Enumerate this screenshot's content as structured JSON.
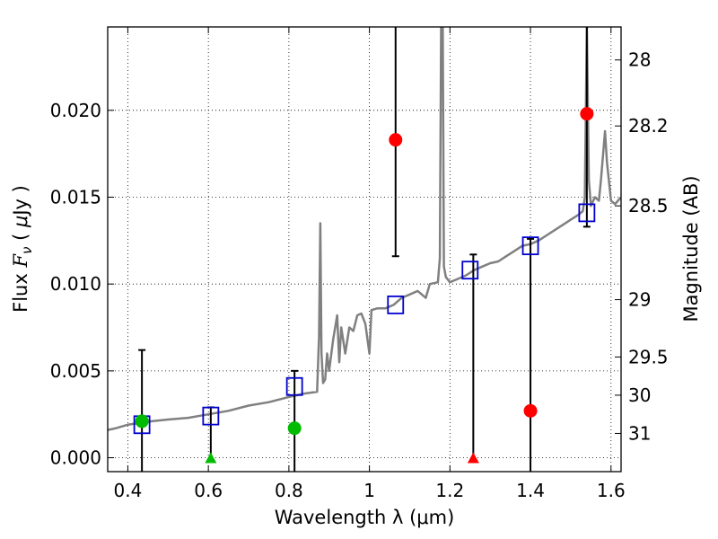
{
  "chart_data": {
    "type": "scatter",
    "xlabel": "Wavelength  λ (μm)",
    "ylabel_parts": [
      "Flux  ",
      "F",
      "ν",
      "  ( ",
      "μ",
      "Jy )"
    ],
    "y2label": "Magnitude (AB)",
    "xlim": [
      0.35,
      1.625
    ],
    "ylim": [
      -0.0008,
      0.0248
    ],
    "grid": true,
    "xticks": [
      0.4,
      0.6,
      0.8,
      1.0,
      1.2,
      1.4,
      1.6
    ],
    "xtick_labels": [
      "0.4",
      "0.6",
      "0.8",
      "1",
      "1.2",
      "1.4",
      "1.6"
    ],
    "yticks": [
      0.0,
      0.005,
      0.01,
      0.015,
      0.02
    ],
    "ytick_labels": [
      "0.000",
      "0.005",
      "0.010",
      "0.015",
      "0.020"
    ],
    "y2ticks": [
      {
        "flux": 0.0229,
        "label": "28"
      },
      {
        "flux": 0.0191,
        "label": "28.2"
      },
      {
        "flux": 0.0145,
        "label": "28.5"
      },
      {
        "flux": 0.0091,
        "label": "29"
      },
      {
        "flux": 0.0058,
        "label": "29.5"
      },
      {
        "flux": 0.0036,
        "label": "30"
      },
      {
        "flux": 0.0014,
        "label": "31"
      }
    ],
    "colors": {
      "sed": "#808080",
      "model_box": "#0000cc",
      "error_bar": "#000000",
      "detection_green": "#00bb00",
      "detection_red": "#ff0000",
      "axis": "#000000"
    },
    "sed_template": [
      [
        0.35,
        0.0016
      ],
      [
        0.37,
        0.0017
      ],
      [
        0.4,
        0.0019
      ],
      [
        0.43,
        0.002
      ],
      [
        0.46,
        0.0021
      ],
      [
        0.5,
        0.0022
      ],
      [
        0.55,
        0.0023
      ],
      [
        0.6,
        0.0025
      ],
      [
        0.65,
        0.0027
      ],
      [
        0.7,
        0.003
      ],
      [
        0.75,
        0.0032
      ],
      [
        0.8,
        0.0035
      ],
      [
        0.84,
        0.0037
      ],
      [
        0.87,
        0.0038
      ],
      [
        0.875,
        0.007
      ],
      [
        0.878,
        0.0135
      ],
      [
        0.881,
        0.006
      ],
      [
        0.885,
        0.0043
      ],
      [
        0.89,
        0.0045
      ],
      [
        0.895,
        0.006
      ],
      [
        0.9,
        0.005
      ],
      [
        0.91,
        0.0068
      ],
      [
        0.92,
        0.0082
      ],
      [
        0.925,
        0.0055
      ],
      [
        0.93,
        0.0075
      ],
      [
        0.94,
        0.006
      ],
      [
        0.95,
        0.0075
      ],
      [
        0.96,
        0.0073
      ],
      [
        0.97,
        0.0082
      ],
      [
        0.98,
        0.0083
      ],
      [
        0.99,
        0.0077
      ],
      [
        1.0,
        0.006
      ],
      [
        1.005,
        0.0085
      ],
      [
        1.02,
        0.0086
      ],
      [
        1.04,
        0.0086
      ],
      [
        1.06,
        0.0088
      ],
      [
        1.08,
        0.0092
      ],
      [
        1.1,
        0.0094
      ],
      [
        1.12,
        0.0096
      ],
      [
        1.14,
        0.0092
      ],
      [
        1.15,
        0.01
      ],
      [
        1.17,
        0.0101
      ],
      [
        1.175,
        0.0115
      ],
      [
        1.178,
        0.0248
      ],
      [
        1.182,
        0.0248
      ],
      [
        1.185,
        0.011
      ],
      [
        1.19,
        0.0104
      ],
      [
        1.2,
        0.0101
      ],
      [
        1.22,
        0.0103
      ],
      [
        1.24,
        0.0105
      ],
      [
        1.26,
        0.0108
      ],
      [
        1.28,
        0.011
      ],
      [
        1.3,
        0.0112
      ],
      [
        1.32,
        0.0113
      ],
      [
        1.34,
        0.0116
      ],
      [
        1.36,
        0.0119
      ],
      [
        1.38,
        0.0122
      ],
      [
        1.4,
        0.0123
      ],
      [
        1.42,
        0.0125
      ],
      [
        1.44,
        0.0128
      ],
      [
        1.46,
        0.0131
      ],
      [
        1.48,
        0.0134
      ],
      [
        1.5,
        0.0137
      ],
      [
        1.52,
        0.014
      ],
      [
        1.53,
        0.0142
      ],
      [
        1.535,
        0.015
      ],
      [
        1.54,
        0.0248
      ],
      [
        1.545,
        0.016
      ],
      [
        1.55,
        0.0145
      ],
      [
        1.56,
        0.015
      ],
      [
        1.57,
        0.0148
      ],
      [
        1.575,
        0.016
      ],
      [
        1.585,
        0.0188
      ],
      [
        1.59,
        0.017
      ],
      [
        1.6,
        0.0148
      ],
      [
        1.61,
        0.0146
      ],
      [
        1.625,
        0.015
      ]
    ],
    "model_photometry": [
      {
        "x": 0.435,
        "y": 0.0019
      },
      {
        "x": 0.606,
        "y": 0.0024
      },
      {
        "x": 0.814,
        "y": 0.0041
      },
      {
        "x": 1.065,
        "y": 0.0088
      },
      {
        "x": 1.25,
        "y": 0.0108
      },
      {
        "x": 1.4,
        "y": 0.0122
      },
      {
        "x": 1.54,
        "y": 0.0141
      }
    ],
    "observed_detections": [
      {
        "x": 0.435,
        "y": 0.0021,
        "err_low": -0.0008,
        "err_high": 0.0062,
        "color": "green"
      },
      {
        "x": 0.814,
        "y": 0.0017,
        "err_low": -0.0008,
        "err_high": 0.005,
        "color": "green"
      },
      {
        "x": 1.065,
        "y": 0.0183,
        "err_low": 0.0116,
        "err_high": 0.0248,
        "color": "red"
      },
      {
        "x": 1.4,
        "y": 0.0027,
        "err_low": -0.0008,
        "err_high": 0.0126,
        "color": "red"
      },
      {
        "x": 1.54,
        "y": 0.0198,
        "err_low": 0.0133,
        "err_high": 0.0248,
        "color": "red"
      }
    ],
    "upper_limits": [
      {
        "x": 0.606,
        "y": 0.0,
        "err_high": 0.0029,
        "color": "green"
      },
      {
        "x": 1.258,
        "y": 0.0,
        "err_high": 0.0117,
        "color": "red"
      }
    ]
  }
}
